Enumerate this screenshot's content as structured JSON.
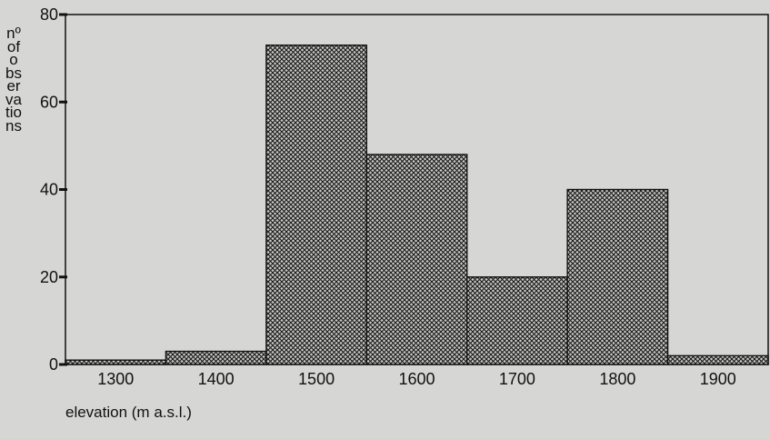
{
  "chart_data": {
    "type": "bar",
    "title": "",
    "xlabel": "elevation (m a.s.l.)",
    "ylabel": "nº of observations",
    "x_ticks": [
      1300,
      1400,
      1500,
      1600,
      1700,
      1800,
      1900
    ],
    "y_ticks": [
      0,
      20,
      40,
      60,
      80
    ],
    "xlim": [
      1250,
      1950
    ],
    "ylim": [
      0,
      80
    ],
    "bin_width": 100,
    "bins": [
      {
        "start": 1250,
        "end": 1350,
        "value": 1
      },
      {
        "start": 1350,
        "end": 1450,
        "value": 3
      },
      {
        "start": 1450,
        "end": 1550,
        "value": 73
      },
      {
        "start": 1550,
        "end": 1650,
        "value": 48
      },
      {
        "start": 1650,
        "end": 1750,
        "value": 20
      },
      {
        "start": 1750,
        "end": 1850,
        "value": 40
      },
      {
        "start": 1850,
        "end": 1950,
        "value": 2
      }
    ],
    "grid": false,
    "fill_pattern": "crosshatch",
    "colors": {
      "background": "#d6d6d4",
      "bar_hatch": "#1a1a1a",
      "bar_fill": "#c8c8c6",
      "axis": "#111111"
    }
  }
}
